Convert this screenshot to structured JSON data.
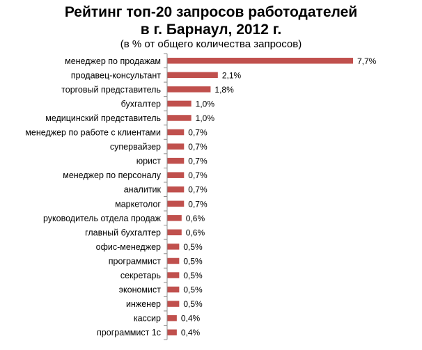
{
  "chart_data": {
    "type": "bar",
    "orientation": "horizontal",
    "title_line1": "Рейтинг топ-20 запросов работодателей",
    "title_line2": "в г. Барнаул, 2012 г.",
    "subtitle": "(в % от общего количества запросов)",
    "categories": [
      "менеджер по продажам",
      "продавец-консультант",
      "торговый представитель",
      "бухгалтер",
      "медицинский представитель",
      "менеджер по работе с клиентами",
      "супервайзер",
      "юрист",
      "менеджер по персоналу",
      "аналитик",
      "маркетолог",
      "руководитель отдела продаж",
      "главный бухгалтер",
      "офис-менеджер",
      "программист",
      "секретарь",
      "экономист",
      "инженер",
      "кассир",
      "программист  1с"
    ],
    "values": [
      7.7,
      2.1,
      1.8,
      1.0,
      1.0,
      0.7,
      0.7,
      0.7,
      0.7,
      0.7,
      0.7,
      0.6,
      0.6,
      0.5,
      0.5,
      0.5,
      0.5,
      0.5,
      0.4,
      0.4
    ],
    "data_labels": [
      "7,7%",
      "2,1%",
      "1,8%",
      "1,0%",
      "1,0%",
      "0,7%",
      "0,7%",
      "0,7%",
      "0,7%",
      "0,7%",
      "0,7%",
      "0,6%",
      "0,6%",
      "0,5%",
      "0,5%",
      "0,5%",
      "0,5%",
      "0,5%",
      "0,4%",
      "0,4%"
    ],
    "xlim": [
      0,
      7.7
    ],
    "grid": false,
    "legend": "none",
    "bar_color": "#c0504d",
    "axis_color": "#8c8c8c"
  }
}
